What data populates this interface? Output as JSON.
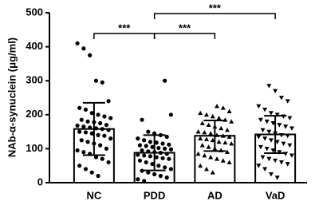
{
  "chart_data": {
    "type": "bar",
    "y_label": "NAb-α-synuclein (μg/ml)",
    "categories": [
      "NC",
      "PDD",
      "AD",
      "VaD"
    ],
    "values": [
      158,
      88,
      138,
      142
    ],
    "errors": [
      77,
      52,
      45,
      55
    ],
    "color": "#ffffff",
    "markers": [
      "circle",
      "circle",
      "triangle-up",
      "triangle-down"
    ],
    "points": [
      [
        410,
        395,
        375,
        300,
        295,
        240,
        220,
        215,
        205,
        200,
        195,
        190,
        185,
        180,
        178,
        175,
        170,
        168,
        165,
        162,
        160,
        158,
        155,
        150,
        148,
        145,
        140,
        138,
        130,
        125,
        120,
        115,
        110,
        100,
        95,
        90,
        85,
        75,
        70,
        60,
        50,
        40,
        30,
        20
      ],
      [
        300,
        200,
        185,
        150,
        145,
        140,
        135,
        130,
        125,
        120,
        118,
        115,
        112,
        110,
        108,
        105,
        102,
        100,
        98,
        95,
        92,
        90,
        88,
        85,
        82,
        80,
        78,
        75,
        72,
        70,
        65,
        60,
        55,
        50,
        45,
        40,
        35,
        30,
        25,
        20,
        15,
        10,
        5
      ],
      [
        225,
        220,
        210,
        205,
        200,
        195,
        190,
        185,
        180,
        175,
        170,
        165,
        160,
        155,
        150,
        148,
        145,
        140,
        138,
        135,
        130,
        128,
        125,
        120,
        118,
        115,
        110,
        105,
        100,
        95,
        90,
        85,
        80,
        75,
        70,
        65,
        60,
        50,
        40,
        30
      ],
      [
        285,
        270,
        250,
        240,
        225,
        215,
        205,
        200,
        195,
        190,
        185,
        180,
        175,
        170,
        165,
        160,
        155,
        150,
        145,
        140,
        138,
        135,
        130,
        125,
        120,
        115,
        110,
        105,
        100,
        95,
        90,
        85,
        80,
        75,
        70,
        65,
        60,
        55,
        50,
        40,
        25,
        15
      ]
    ],
    "annotations": [
      {
        "text": "***",
        "categories": [
          "NC",
          "PDD"
        ]
      },
      {
        "text": "***",
        "categories": [
          "PDD",
          "AD"
        ]
      },
      {
        "text": "***",
        "categories": [
          "PDD",
          "VaD"
        ]
      }
    ],
    "ylim": [
      0,
      500
    ],
    "yticks": [
      0,
      100,
      200,
      300,
      400,
      500
    ]
  }
}
